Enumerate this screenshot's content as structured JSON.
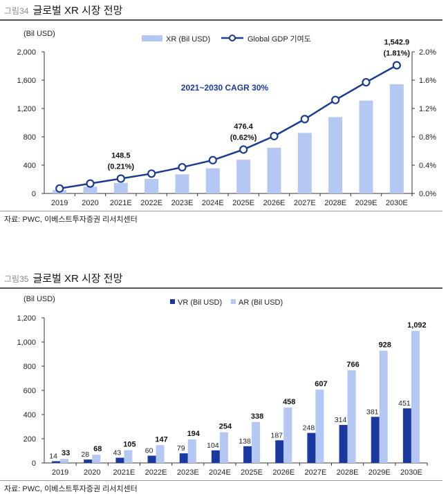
{
  "figures": [
    {
      "number": "그림34",
      "title": "글로벌 XR 시장 전망",
      "source": "자료: PWC, 이베스트투자증권 리서치센터"
    },
    {
      "number": "그림35",
      "title": "글로벌 XR 시장 전망",
      "source": "자료: PWC, 이베스트투자증권 리서치센터"
    }
  ],
  "colors": {
    "bar_light": "#b4c8f3",
    "line_navy": "#1b3b8f",
    "vr_navy": "#1a3aa0",
    "cagr_text": "#1a3aa0"
  },
  "chart_data": [
    {
      "type": "bar+line",
      "categories": [
        "2019",
        "2020",
        "2021E",
        "2022E",
        "2023E",
        "2024E",
        "2025E",
        "2026E",
        "2027E",
        "2028E",
        "2029E",
        "2030E"
      ],
      "series": [
        {
          "name": "XR (Bil USD)",
          "type": "bar",
          "axis": "left",
          "values": [
            47,
            95,
            148.5,
            205,
            270,
            355,
            476.4,
            645,
            855,
            1078,
            1310,
            1542.9
          ]
        },
        {
          "name": "Global GDP 기여도",
          "type": "line",
          "axis": "right",
          "values": [
            0.07,
            0.14,
            0.21,
            0.28,
            0.37,
            0.47,
            0.62,
            0.81,
            1.05,
            1.32,
            1.57,
            1.81
          ]
        }
      ],
      "ylabel": "(Bil USD)",
      "y_left": {
        "min": 0,
        "max": 2000,
        "ticks": [
          "0",
          "400",
          "800",
          "1,200",
          "1,600",
          "2,000"
        ]
      },
      "y_right": {
        "min": 0,
        "max": 2.0,
        "ticks": [
          "0.0%",
          "0.4%",
          "0.8%",
          "1.2%",
          "1.6%",
          "2.0%"
        ]
      },
      "annotations": [
        {
          "index": 2,
          "value": "148.5",
          "pct": "(0.21%)"
        },
        {
          "index": 6,
          "value": "476.4",
          "pct": "(0.62%)"
        },
        {
          "index": 11,
          "value": "1,542.9",
          "pct": "(1.81%)"
        }
      ],
      "cagr_text": "2021~2030 CAGR 30%",
      "legend": [
        "XR (Bil USD)",
        "Global GDP 기여도"
      ]
    },
    {
      "type": "bar",
      "categories": [
        "2019",
        "2020",
        "2021E",
        "2022E",
        "2023E",
        "2024E",
        "2025E",
        "2026E",
        "2027E",
        "2028E",
        "2029E",
        "2030E"
      ],
      "series": [
        {
          "name": "VR (Bil USD)",
          "values": [
            14,
            28,
            43,
            60,
            79,
            104,
            138,
            187,
            248,
            314,
            381,
            451
          ]
        },
        {
          "name": "AR (Bil USD)",
          "values": [
            33,
            68,
            105,
            147,
            194,
            254,
            338,
            458,
            607,
            766,
            928,
            1092
          ]
        }
      ],
      "ylabel": "(Bil USD)",
      "y": {
        "min": 0,
        "max": 1200,
        "ticks": [
          "0",
          "200",
          "400",
          "600",
          "800",
          "1,000",
          "1,200"
        ]
      },
      "legend": [
        "VR (Bil USD)",
        "AR (Bil USD)"
      ]
    }
  ]
}
